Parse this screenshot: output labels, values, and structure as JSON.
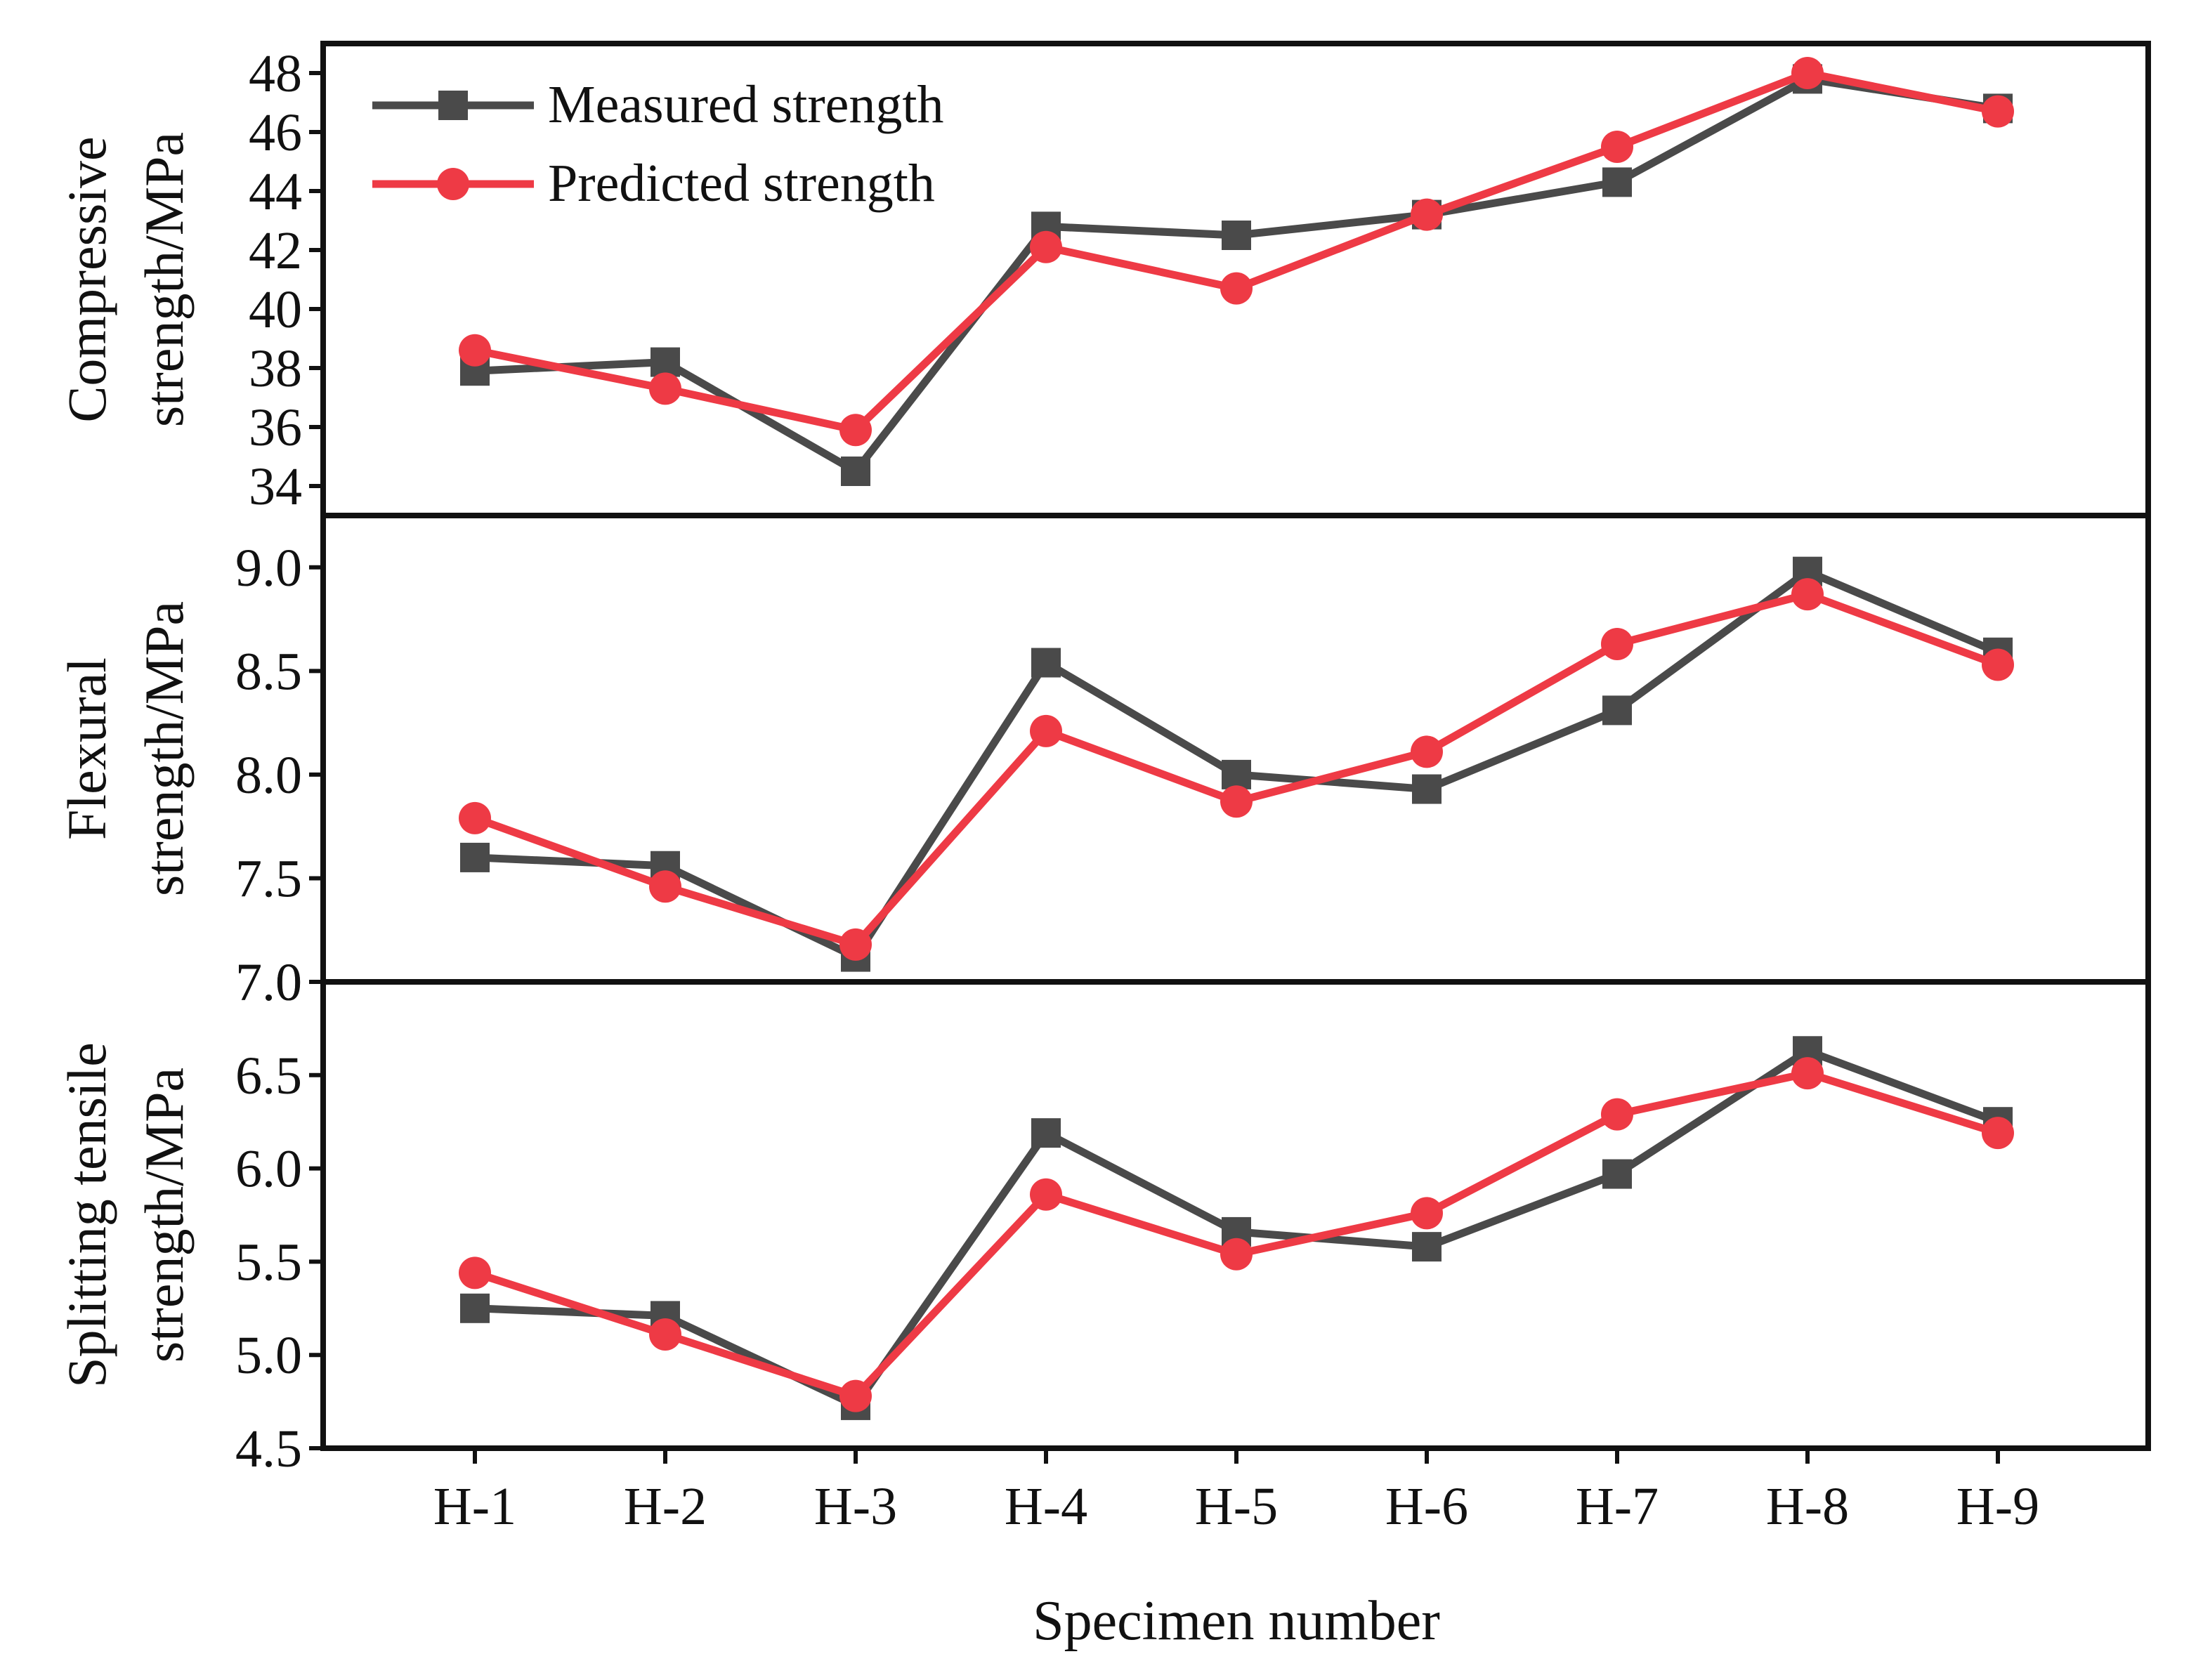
{
  "chart_data": {
    "type": "line",
    "xlabel": "Specimen number",
    "categories": [
      "H-1",
      "H-2",
      "H-3",
      "H-4",
      "H-5",
      "H-6",
      "H-7",
      "H-8",
      "H-9"
    ],
    "legend": {
      "placement": "top-left",
      "entries": [
        "Measured strength",
        "Predicted strength"
      ]
    },
    "colors": {
      "measured": "#4a4a4a",
      "predicted": "#ee3a45"
    },
    "panels": [
      {
        "ylabel_line1": "Compressive",
        "ylabel_line2": "strength/MPa",
        "ylim": [
          33,
          49
        ],
        "yticks": [
          34,
          36,
          38,
          40,
          42,
          44,
          46,
          48
        ],
        "ytick_labels": [
          "34",
          "36",
          "38",
          "40",
          "42",
          "44",
          "46",
          "48"
        ],
        "series": [
          {
            "name": "Measured strength",
            "values": [
              37.9,
              38.2,
              34.5,
              42.8,
              42.5,
              43.2,
              44.3,
              47.8,
              46.8
            ]
          },
          {
            "name": "Predicted strength",
            "values": [
              38.6,
              37.3,
              35.9,
              42.1,
              40.7,
              43.2,
              45.5,
              48.0,
              46.7
            ]
          }
        ]
      },
      {
        "ylabel_line1": "Flexural",
        "ylabel_line2": "strength/MPa",
        "ylim": [
          7.0,
          9.25
        ],
        "yticks": [
          7.0,
          7.5,
          8.0,
          8.5,
          9.0
        ],
        "ytick_labels": [
          "7.0",
          "7.5",
          "8.0",
          "8.5",
          "9.0"
        ],
        "series": [
          {
            "name": "Measured strength",
            "values": [
              7.6,
              7.56,
              7.12,
              8.54,
              8.0,
              7.93,
              8.31,
              8.98,
              8.59
            ]
          },
          {
            "name": "Predicted strength",
            "values": [
              7.79,
              7.46,
              7.18,
              8.21,
              7.87,
              8.11,
              8.63,
              8.87,
              8.53
            ]
          }
        ]
      },
      {
        "ylabel_line1": "Splitting tensile",
        "ylabel_line2": "strength/MPa",
        "ylim": [
          4.5,
          7.0
        ],
        "yticks": [
          4.5,
          5.0,
          5.5,
          6.0,
          6.5,
          7.0
        ],
        "ytick_labels": [
          "4.5",
          "5.0",
          "5.5",
          "6.0",
          "6.5",
          "7.0"
        ],
        "series": [
          {
            "name": "Measured strength",
            "values": [
              5.25,
              5.21,
              4.73,
              6.19,
              5.66,
              5.58,
              5.97,
              6.63,
              6.25
            ]
          },
          {
            "name": "Predicted strength",
            "values": [
              5.44,
              5.11,
              4.78,
              5.86,
              5.54,
              5.76,
              6.29,
              6.51,
              6.19
            ]
          }
        ]
      }
    ]
  }
}
